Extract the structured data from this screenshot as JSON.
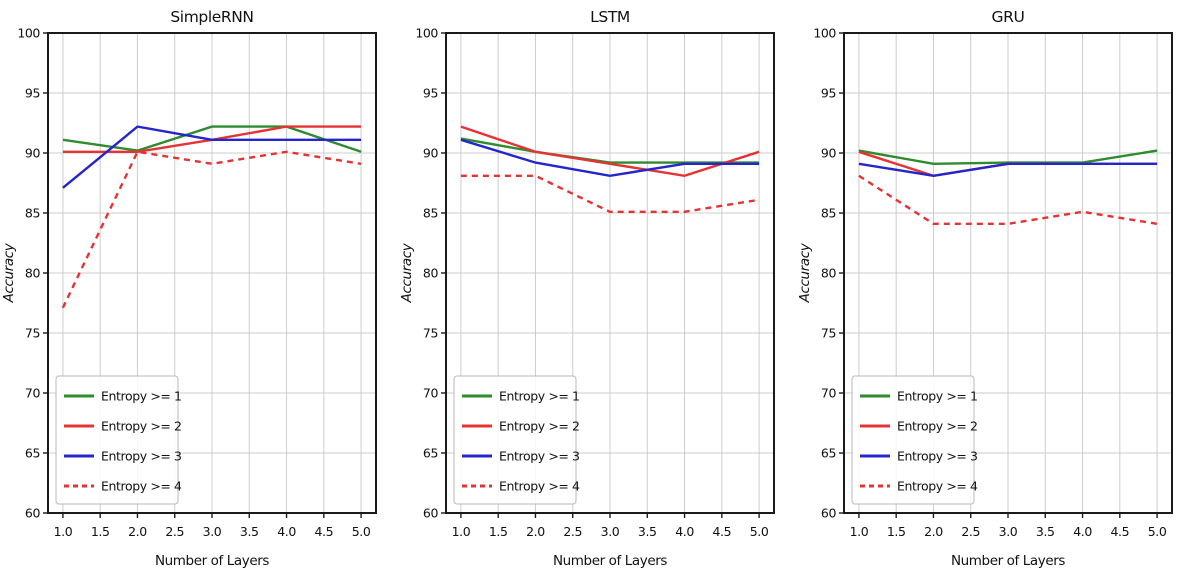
{
  "figure": {
    "background": "#ffffff",
    "description": "Three line charts comparing accuracy vs number of layers for SimpleRNN, LSTM and GRU at different entropy thresholds"
  },
  "colors": {
    "green": "#2e8b2e",
    "red": "#e53333",
    "blue": "#2525cc",
    "grid": "#cccccc",
    "spine": "#1a1a1a",
    "text": "#111111",
    "legend_border": "#b9b9b9",
    "legend_bg": "rgba(255,255,255,0.85)"
  },
  "chart_data": [
    {
      "type": "line",
      "title": "SimpleRNN",
      "xlabel": "Number of Layers",
      "ylabel": "Accuracy",
      "x": [
        1,
        2,
        3,
        4,
        5
      ],
      "xlim": [
        0.8,
        5.2
      ],
      "ylim": [
        60,
        100
      ],
      "grid": true,
      "legend_position": "lower left",
      "xtick_labels": [
        "1.0",
        "1.5",
        "2.0",
        "2.5",
        "3.0",
        "3.5",
        "4.0",
        "4.5",
        "5.0"
      ],
      "ytick_labels": [
        "60",
        "65",
        "70",
        "75",
        "80",
        "85",
        "90",
        "95",
        "100"
      ],
      "series": [
        {
          "name": "Entropy >= 1",
          "color": "green",
          "dash": false,
          "values": [
            91.1,
            90.2,
            92.2,
            92.2,
            90.1
          ]
        },
        {
          "name": "Entropy >= 2",
          "color": "red",
          "dash": false,
          "values": [
            90.1,
            90.1,
            91.1,
            92.2,
            92.2
          ]
        },
        {
          "name": "Entropy >= 3",
          "color": "blue",
          "dash": false,
          "values": [
            87.1,
            92.2,
            91.1,
            91.1,
            91.1
          ]
        },
        {
          "name": "Entropy >= 4",
          "color": "red",
          "dash": true,
          "values": [
            77.1,
            90.1,
            89.1,
            90.1,
            89.1
          ]
        }
      ]
    },
    {
      "type": "line",
      "title": "LSTM",
      "xlabel": "Number of Layers",
      "ylabel": "Accuracy",
      "x": [
        1,
        2,
        3,
        4,
        5
      ],
      "xlim": [
        0.8,
        5.2
      ],
      "ylim": [
        60,
        100
      ],
      "grid": true,
      "legend_position": "lower left",
      "xtick_labels": [
        "1.0",
        "1.5",
        "2.0",
        "2.5",
        "3.0",
        "3.5",
        "4.0",
        "4.5",
        "5.0"
      ],
      "ytick_labels": [
        "60",
        "65",
        "70",
        "75",
        "80",
        "85",
        "90",
        "95",
        "100"
      ],
      "series": [
        {
          "name": "Entropy >= 1",
          "color": "green",
          "dash": false,
          "values": [
            91.2,
            90.1,
            89.2,
            89.2,
            89.2
          ]
        },
        {
          "name": "Entropy >= 2",
          "color": "red",
          "dash": false,
          "values": [
            92.2,
            90.1,
            89.1,
            88.1,
            90.1
          ]
        },
        {
          "name": "Entropy >= 3",
          "color": "blue",
          "dash": false,
          "values": [
            91.1,
            89.2,
            88.1,
            89.1,
            89.1
          ]
        },
        {
          "name": "Entropy >= 4",
          "color": "red",
          "dash": true,
          "values": [
            88.1,
            88.1,
            85.1,
            85.1,
            86.1
          ]
        }
      ]
    },
    {
      "type": "line",
      "title": "GRU",
      "xlabel": "Number of Layers",
      "ylabel": "Accuracy",
      "x": [
        1,
        2,
        3,
        4,
        5
      ],
      "xlim": [
        0.8,
        5.2
      ],
      "ylim": [
        60,
        100
      ],
      "grid": true,
      "legend_position": "lower left",
      "xtick_labels": [
        "1.0",
        "1.5",
        "2.0",
        "2.5",
        "3.0",
        "3.5",
        "4.0",
        "4.5",
        "5.0"
      ],
      "ytick_labels": [
        "60",
        "65",
        "70",
        "75",
        "80",
        "85",
        "90",
        "95",
        "100"
      ],
      "series": [
        {
          "name": "Entropy >= 1",
          "color": "green",
          "dash": false,
          "values": [
            90.2,
            89.1,
            89.2,
            89.2,
            90.2
          ]
        },
        {
          "name": "Entropy >= 2",
          "color": "red",
          "dash": false,
          "values": [
            90.1,
            88.1,
            89.1,
            89.1,
            89.1
          ]
        },
        {
          "name": "Entropy >= 3",
          "color": "blue",
          "dash": false,
          "values": [
            89.1,
            88.1,
            89.1,
            89.1,
            89.1
          ]
        },
        {
          "name": "Entropy >= 4",
          "color": "red",
          "dash": true,
          "values": [
            88.1,
            84.1,
            84.1,
            85.1,
            84.1
          ]
        }
      ]
    }
  ]
}
